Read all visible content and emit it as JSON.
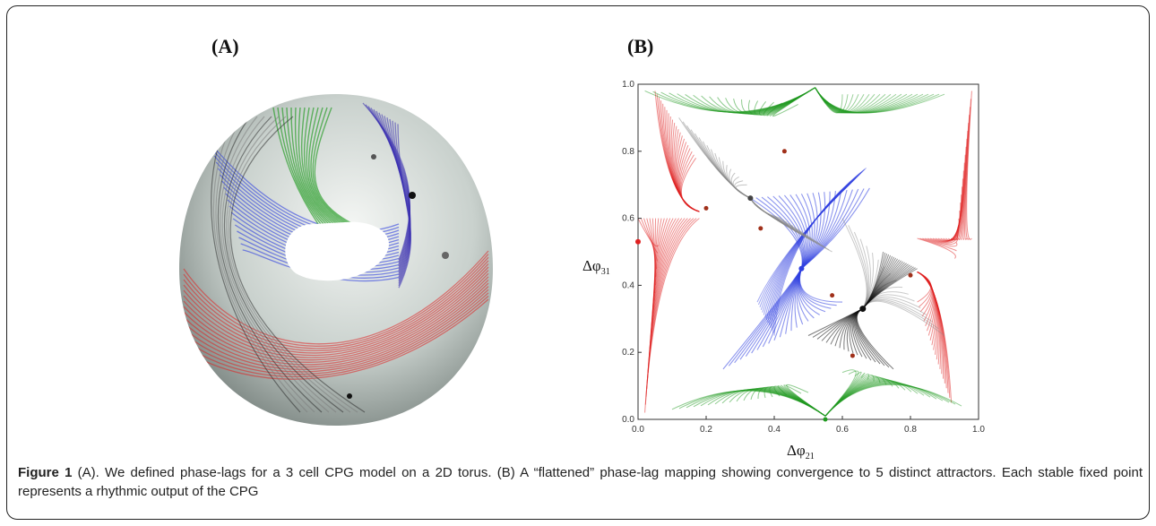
{
  "figure": {
    "panel_a_label": "(A)",
    "panel_b_label": "(B)",
    "caption_label": "Figure 1",
    "caption_text": " (A). We defined phase-lags for a 3 cell CPG model on a 2D torus. (B) A “flattened” phase-lag mapping showing convergence to 5 distinct attractors. Each stable fixed point represents a rhythmic output of the CPG"
  },
  "plot": {
    "x_axis_label": "Δφ",
    "x_axis_sub": "21",
    "y_axis_label": "Δφ",
    "y_axis_sub": "31",
    "x_ticks": [
      "0.0",
      "0.2",
      "0.4",
      "0.6",
      "0.8",
      "1.0"
    ],
    "y_ticks": [
      "0.0",
      "0.2",
      "0.4",
      "0.6",
      "0.8",
      "1.0"
    ],
    "colors": {
      "red": "#e02020",
      "green": "#1f9a1f",
      "blue": "#2f3fe0",
      "gray": "#8a8a8a",
      "black": "#111111",
      "fixed_point": "#a0301a"
    }
  }
}
